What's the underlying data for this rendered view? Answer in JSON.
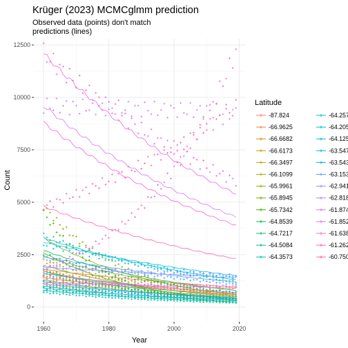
{
  "chart_data": {
    "type": "line",
    "title": "Krüger (2023) MCMCglmm prediction",
    "subtitle": [
      "Observed data (points) don't match",
      "predictions (lines)"
    ],
    "xlabel": "Year",
    "ylabel": "Count",
    "xlim": [
      1957,
      2022
    ],
    "ylim": [
      -700,
      12800
    ],
    "x_ticks": [
      1960,
      1980,
      2000,
      2020
    ],
    "y_ticks": [
      0,
      2500,
      5000,
      7500,
      10000,
      12500
    ],
    "grid": true,
    "legend_position": "right",
    "legend_title": "Latitude",
    "observed_marker": "plus",
    "series": [
      {
        "name": "-87.824",
        "color": "#F8766D",
        "obs_start": 1400,
        "obs_end": 700,
        "pred_start": 1600,
        "pred_end": 650
      },
      {
        "name": "-66.9625",
        "color": "#F07E4F",
        "obs_start": 1700,
        "obs_end": 900,
        "pred_start": 1800,
        "pred_end": 950
      },
      {
        "name": "-66.6682",
        "color": "#E38900",
        "obs_start": 1300,
        "obs_end": 500,
        "pred_start": 1400,
        "pred_end": 600
      },
      {
        "name": "-66.6173",
        "color": "#D39200",
        "obs_start": 1100,
        "obs_end": 350,
        "pred_start": 1200,
        "pred_end": 450
      },
      {
        "name": "-66.3497",
        "color": "#C09B00",
        "obs_start": 2200,
        "obs_end": 600,
        "pred_start": 2400,
        "pred_end": 800
      },
      {
        "name": "-66.1099",
        "color": "#A9A400",
        "obs_start": 1500,
        "obs_end": 400,
        "pred_start": 1700,
        "pred_end": 550
      },
      {
        "name": "-65.9961",
        "color": "#8EAB00",
        "obs_start": 4800,
        "obs_end": 500,
        "pred_start": 3300,
        "pred_end": 600
      },
      {
        "name": "-65.8945",
        "color": "#6CB100",
        "obs_start": 1800,
        "obs_end": 350,
        "pred_start": 2000,
        "pred_end": 500
      },
      {
        "name": "-65.7342",
        "color": "#36B600",
        "obs_start": 4500,
        "obs_end": 200,
        "pred_start": 2600,
        "pred_end": 350
      },
      {
        "name": "-64.8539",
        "color": "#00BA38",
        "obs_start": 900,
        "obs_end": 250,
        "pred_start": 1000,
        "pred_end": 300
      },
      {
        "name": "-64.7217",
        "color": "#00BD66",
        "obs_start": 2500,
        "obs_end": 700,
        "pred_start": 2700,
        "pred_end": 800
      },
      {
        "name": "-64.5084",
        "color": "#00BF88",
        "obs_start": 1600,
        "obs_end": 400,
        "pred_start": 1700,
        "pred_end": 450
      },
      {
        "name": "-64.3573",
        "color": "#00C0A6",
        "obs_start": 700,
        "obs_end": 200,
        "pred_start": 800,
        "pred_end": 250
      },
      {
        "name": "-64.2577",
        "color": "#00C0BF",
        "obs_start": 3400,
        "obs_end": 1200,
        "pred_start": 3300,
        "pred_end": 1300
      },
      {
        "name": "-64.205",
        "color": "#00BED6",
        "obs_start": 1200,
        "obs_end": 350,
        "pred_start": 1300,
        "pred_end": 400
      },
      {
        "name": "-64.1259",
        "color": "#00BAE9",
        "obs_start": 3000,
        "obs_end": 1400,
        "pred_start": 3100,
        "pred_end": 1500
      },
      {
        "name": "-63.5472",
        "color": "#00B3F8",
        "obs_start": 800,
        "obs_end": 300,
        "pred_start": 900,
        "pred_end": 350
      },
      {
        "name": "-63.5431",
        "color": "#00A9FF",
        "obs_start": 1000,
        "obs_end": 400,
        "pred_start": 1100,
        "pred_end": 450
      },
      {
        "name": "-63.1533",
        "color": "#529EFF",
        "obs_start": 2300,
        "obs_end": 1100,
        "pred_start": 2400,
        "pred_end": 1200
      },
      {
        "name": "-62.9411",
        "color": "#8F91FF",
        "obs_start": 1900,
        "obs_end": 1500,
        "pred_start": 1900,
        "pred_end": 1400
      },
      {
        "name": "-62.8185",
        "color": "#B584FF",
        "obs_start": 1500,
        "obs_end": 600,
        "pred_start": 1600,
        "pred_end": 700
      },
      {
        "name": "-61.8741",
        "color": "#D078FF",
        "obs_start": 9600,
        "obs_end": 9300,
        "pred_start": 9600,
        "pred_end": 4300
      },
      {
        "name": "-61.8525",
        "color": "#E26EF7",
        "obs_start": 1100,
        "obs_end": 1000,
        "pred_start": 1200,
        "pred_end": 900
      },
      {
        "name": "-61.6389",
        "color": "#F067E2",
        "obs_start": 12100,
        "obs_end": 6000,
        "pred_start": 12100,
        "pred_end": 5400
      },
      {
        "name": "-61.2625",
        "color": "#FA62CA",
        "obs_start": 1800,
        "obs_end": 12200,
        "pred_start": 8800,
        "pred_end": 3900
      },
      {
        "name": "-60.7507",
        "color": "#FF62AE",
        "obs_start": 4800,
        "obs_end": 9500,
        "pred_start": 4800,
        "pred_end": 2300
      }
    ]
  }
}
